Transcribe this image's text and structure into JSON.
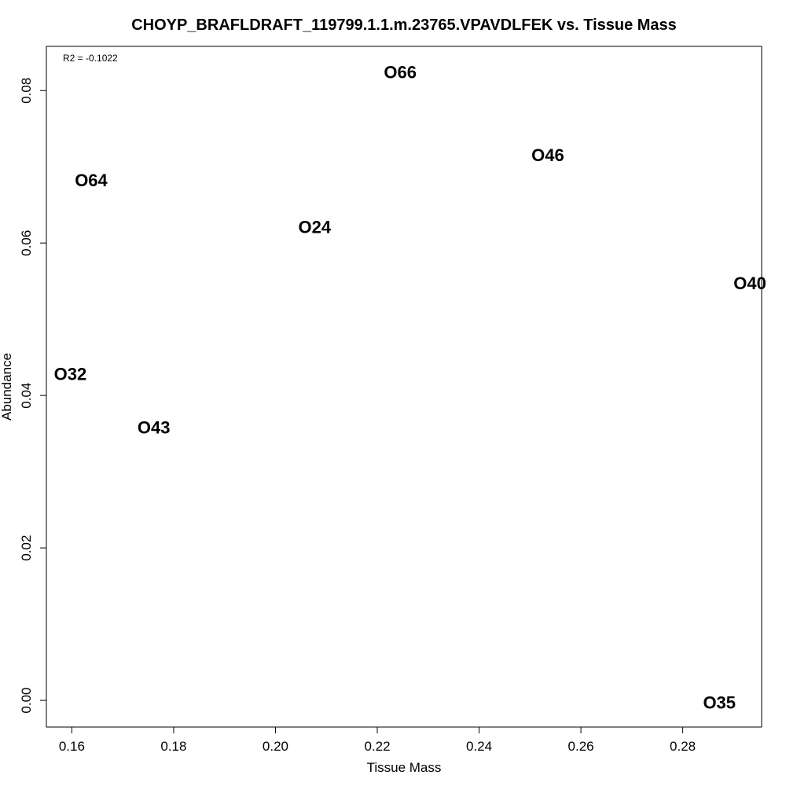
{
  "chart_data": {
    "type": "scatter",
    "title": "CHOYP_BRAFLDRAFT_119799.1.1.m.23765.VPAVDLFEK vs. Tissue Mass",
    "xlabel": "Tissue Mass",
    "ylabel": "Abundance",
    "annotation": "R2 = -0.1022",
    "xlim": [
      0.155,
      0.2955
    ],
    "ylim": [
      -0.0035,
      0.0858
    ],
    "x_ticks": [
      0.16,
      0.18,
      0.2,
      0.22,
      0.24,
      0.26,
      0.28
    ],
    "x_tick_labels": [
      "0.16",
      "0.18",
      "0.20",
      "0.22",
      "0.24",
      "0.26",
      "0.28"
    ],
    "y_ticks": [
      0.0,
      0.02,
      0.04,
      0.06,
      0.08
    ],
    "y_tick_labels": [
      "0.00",
      "0.02",
      "0.04",
      "0.06",
      "0.08"
    ],
    "grid": false,
    "points": [
      {
        "label": "O66",
        "x": 0.2245,
        "y": 0.0824
      },
      {
        "label": "O46",
        "x": 0.2535,
        "y": 0.0715
      },
      {
        "label": "O64",
        "x": 0.1638,
        "y": 0.0682
      },
      {
        "label": "O24",
        "x": 0.2077,
        "y": 0.0621
      },
      {
        "label": "O40",
        "x": 0.2932,
        "y": 0.0547
      },
      {
        "label": "O32",
        "x": 0.1597,
        "y": 0.0428
      },
      {
        "label": "O43",
        "x": 0.1761,
        "y": 0.0358
      },
      {
        "label": "O35",
        "x": 0.2872,
        "y": -0.0003
      }
    ]
  }
}
